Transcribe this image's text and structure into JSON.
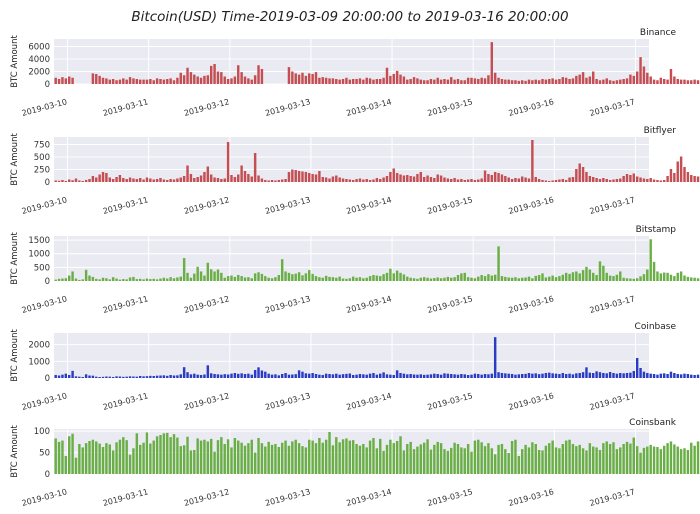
{
  "figure": {
    "title": "Bitcoin(USD)  Time-2019-03-09 20:00:00 to 2019-03-16 20:00:00"
  },
  "x_axis": {
    "ticks": [
      "2019-03-10",
      "2019-03-11",
      "2019-03-12",
      "2019-03-13",
      "2019-03-14",
      "2019-03-15",
      "2019-03-16",
      "2019-03-17"
    ]
  },
  "chart_data": [
    {
      "type": "bar",
      "title": "Binance",
      "ylabel": "BTC Amount",
      "color": "#c44e52",
      "ylim": [
        0,
        7200
      ],
      "yticks": [
        0,
        2000,
        4000,
        6000
      ],
      "grid": true,
      "x_range": [
        "2019-03-09 20:00",
        "2019-03-17 04:00"
      ],
      "x_start": "2019-03-09 20:00",
      "x_step_hours": 1,
      "values": [
        1000,
        800,
        1100,
        900,
        1200,
        1000,
        0,
        0,
        0,
        0,
        0,
        1700,
        1600,
        1300,
        1000,
        900,
        700,
        800,
        600,
        700,
        900,
        700,
        1100,
        900,
        800,
        700,
        700,
        700,
        800,
        600,
        900,
        800,
        700,
        800,
        900,
        600,
        1000,
        1800,
        1400,
        2600,
        1900,
        1500,
        1200,
        1000,
        1300,
        1400,
        2900,
        3200,
        2000,
        1900,
        1200,
        800,
        900,
        1200,
        3000,
        1900,
        1200,
        900,
        700,
        1400,
        3000,
        2400,
        0,
        0,
        0,
        0,
        0,
        0,
        0,
        2700,
        2000,
        1700,
        1500,
        1800,
        1300,
        1700,
        1600,
        1900,
        1000,
        1100,
        1000,
        900,
        900,
        800,
        700,
        800,
        1000,
        700,
        800,
        800,
        900,
        700,
        1000,
        900,
        700,
        800,
        800,
        1000,
        2600,
        1300,
        1600,
        2100,
        1500,
        1200,
        700,
        800,
        1100,
        900,
        700,
        600,
        600,
        800,
        700,
        1000,
        700,
        800,
        700,
        1100,
        700,
        800,
        600,
        600,
        1000,
        1000,
        900,
        800,
        1000,
        900,
        1400,
        6700,
        1800,
        1000,
        800,
        700,
        700,
        600,
        600,
        500,
        600,
        500,
        700,
        600,
        700,
        600,
        800,
        700,
        800,
        900,
        700,
        800,
        1100,
        1000,
        800,
        900,
        1300,
        1500,
        1900,
        1000,
        1200,
        2000,
        800,
        600,
        700,
        900,
        600,
        500,
        600,
        700,
        800,
        900,
        1500,
        1300,
        2000,
        4300,
        2800,
        1800,
        1200,
        700,
        600,
        1000,
        800,
        700,
        2400,
        1200,
        800,
        700,
        700,
        600,
        600,
        700,
        600,
        600,
        500,
        700
      ]
    },
    {
      "type": "bar",
      "title": "Bitflyer",
      "ylabel": "BTC Amount",
      "color": "#c44e52",
      "ylim": [
        0,
        900
      ],
      "yticks": [
        0,
        250,
        500,
        750
      ],
      "grid": true,
      "x_range": [
        "2019-03-09 20:00",
        "2019-03-17 04:00"
      ],
      "x_start": "2019-03-09 20:00",
      "x_step_hours": 1,
      "values": [
        30,
        25,
        40,
        20,
        50,
        35,
        70,
        30,
        20,
        40,
        60,
        120,
        90,
        150,
        200,
        180,
        90,
        60,
        100,
        140,
        80,
        60,
        90,
        70,
        60,
        80,
        50,
        90,
        70,
        50,
        60,
        80,
        50,
        40,
        60,
        50,
        70,
        90,
        120,
        330,
        160,
        80,
        100,
        130,
        200,
        310,
        150,
        90,
        80,
        60,
        70,
        800,
        140,
        100,
        150,
        330,
        220,
        160,
        110,
        580,
        130,
        70,
        40,
        30,
        40,
        30,
        40,
        50,
        60,
        200,
        250,
        240,
        220,
        210,
        200,
        180,
        160,
        150,
        220,
        100,
        90,
        70,
        110,
        130,
        90,
        70,
        60,
        50,
        40,
        60,
        70,
        50,
        60,
        40,
        50,
        80,
        60,
        90,
        120,
        200,
        270,
        180,
        150,
        130,
        140,
        120,
        110,
        160,
        200,
        100,
        130,
        100,
        80,
        150,
        130,
        90,
        70,
        60,
        80,
        50,
        60,
        40,
        50,
        60,
        40,
        50,
        70,
        230,
        160,
        140,
        200,
        180,
        150,
        120,
        90,
        60,
        80,
        70,
        110,
        90,
        70,
        840,
        100,
        60,
        40,
        30,
        20,
        30,
        40,
        50,
        60,
        40,
        90,
        100,
        260,
        370,
        300,
        200,
        120,
        100,
        80,
        60,
        80,
        60,
        40,
        50,
        60,
        70,
        120,
        160,
        140,
        170,
        110,
        90,
        70,
        60,
        80,
        50,
        40,
        30,
        40,
        120,
        260,
        180,
        410,
        510,
        300,
        200,
        140,
        120,
        110,
        200,
        280,
        170,
        100,
        60,
        90,
        140,
        80,
        60,
        40,
        20,
        30,
        20,
        10
      ]
    },
    {
      "type": "bar",
      "title": "Bitstamp",
      "ylabel": "BTC Amount",
      "color": "#6aaf46",
      "ylim": [
        0,
        1650
      ],
      "yticks": [
        0,
        500,
        1000,
        1500
      ],
      "grid": true,
      "x_range": [
        "2019-03-09 20:00",
        "2019-03-17 04:00"
      ],
      "x_start": "2019-03-09 20:00",
      "x_step_hours": 1,
      "values": [
        50,
        80,
        90,
        100,
        200,
        350,
        90,
        40,
        60,
        410,
        200,
        150,
        80,
        60,
        120,
        100,
        60,
        140,
        90,
        50,
        70,
        60,
        130,
        150,
        70,
        80,
        60,
        90,
        70,
        80,
        60,
        90,
        120,
        90,
        140,
        100,
        130,
        160,
        840,
        300,
        120,
        270,
        520,
        350,
        200,
        670,
        430,
        350,
        420,
        300,
        120,
        180,
        200,
        150,
        220,
        180,
        130,
        140,
        100,
        280,
        320,
        260,
        180,
        120,
        100,
        140,
        220,
        800,
        350,
        300,
        250,
        270,
        320,
        210,
        280,
        400,
        260,
        180,
        140,
        120,
        190,
        150,
        140,
        120,
        160,
        90,
        80,
        100,
        160,
        120,
        140,
        100,
        120,
        180,
        220,
        200,
        180,
        250,
        300,
        450,
        280,
        380,
        300,
        240,
        160,
        120,
        100,
        80,
        120,
        140,
        120,
        90,
        110,
        130,
        100,
        120,
        150,
        120,
        140,
        220,
        280,
        300,
        140,
        120,
        100,
        160,
        220,
        180,
        250,
        200,
        230,
        1270,
        180,
        150,
        130,
        120,
        140,
        100,
        120,
        130,
        160,
        100,
        190,
        220,
        280,
        130,
        160,
        200,
        140,
        180,
        230,
        300,
        260,
        320,
        350,
        280,
        400,
        520,
        420,
        300,
        220,
        720,
        560,
        300,
        200,
        180,
        230,
        350,
        120,
        100,
        90,
        80,
        100,
        170,
        250,
        420,
        1530,
        700,
        350,
        280,
        310,
        300,
        230,
        180,
        300,
        350,
        200,
        150,
        130,
        120,
        100,
        90,
        80,
        120,
        100,
        80,
        90,
        60
      ]
    },
    {
      "type": "bar",
      "title": "Coinbase",
      "ylabel": "BTC Amount",
      "color": "#2b3cc4",
      "ylim": [
        0,
        2700
      ],
      "yticks": [
        0,
        1000,
        2000
      ],
      "grid": true,
      "x_range": [
        "2019-03-09 20:00",
        "2019-03-17 04:00"
      ],
      "x_start": "2019-03-09 20:00",
      "x_step_hours": 1,
      "values": [
        180,
        150,
        200,
        260,
        180,
        430,
        100,
        80,
        60,
        220,
        150,
        140,
        80,
        60,
        70,
        90,
        80,
        60,
        100,
        90,
        70,
        80,
        100,
        90,
        80,
        120,
        100,
        110,
        130,
        120,
        140,
        150,
        160,
        130,
        180,
        150,
        160,
        220,
        650,
        350,
        220,
        260,
        200,
        180,
        210,
        760,
        280,
        240,
        220,
        200,
        230,
        210,
        260,
        300,
        250,
        280,
        240,
        260,
        200,
        480,
        640,
        450,
        380,
        260,
        200,
        220,
        160,
        240,
        300,
        200,
        210,
        230,
        460,
        380,
        280,
        260,
        300,
        240,
        200,
        180,
        260,
        240,
        220,
        260,
        200,
        230,
        250,
        270,
        180,
        200,
        240,
        220,
        200,
        260,
        300,
        200,
        260,
        340,
        220,
        200,
        180,
        460,
        300,
        260,
        220,
        240,
        210,
        200,
        220,
        190,
        200,
        220,
        260,
        240,
        200,
        280,
        260,
        240,
        220,
        200,
        240,
        220,
        180,
        200,
        260,
        240,
        200,
        240,
        220,
        260,
        2450,
        350,
        300,
        280,
        260,
        240,
        200,
        220,
        240,
        250,
        300,
        260,
        280,
        230,
        260,
        300,
        320,
        280,
        260,
        240,
        300,
        240,
        260,
        220,
        280,
        300,
        350,
        640,
        320,
        300,
        400,
        350,
        300,
        280,
        360,
        300,
        260,
        300,
        280,
        300,
        320,
        420,
        1200,
        600,
        380,
        300,
        260,
        240,
        200,
        260,
        280,
        240,
        380,
        300,
        240,
        220,
        260,
        240,
        200,
        180,
        200,
        220,
        200,
        180,
        160,
        140
      ]
    },
    {
      "type": "bar",
      "title": "Coinsbank",
      "ylabel": "BTC Amount",
      "color": "#6aaf46",
      "ylim": [
        0,
        105
      ],
      "yticks": [
        0,
        50,
        100
      ],
      "grid": true,
      "x_range": [
        "2019-03-09 20:00",
        "2019-03-17 04:00"
      ],
      "x_start": "2019-03-09 20:00",
      "x_step_hours": 1,
      "values": [
        83,
        75,
        78,
        42,
        88,
        94,
        38,
        70,
        62,
        72,
        77,
        80,
        76,
        71,
        63,
        72,
        69,
        55,
        74,
        80,
        86,
        79,
        45,
        60,
        95,
        68,
        73,
        97,
        71,
        78,
        88,
        91,
        95,
        96,
        86,
        93,
        85,
        65,
        67,
        87,
        55,
        56,
        83,
        78,
        80,
        76,
        82,
        52,
        79,
        86,
        70,
        81,
        62,
        84,
        78,
        73,
        66,
        72,
        80,
        50,
        84,
        72,
        64,
        75,
        68,
        70,
        63,
        73,
        78,
        66,
        76,
        80,
        72,
        65,
        62,
        80,
        78,
        72,
        84,
        73,
        80,
        98,
        67,
        86,
        74,
        81,
        83,
        78,
        79,
        70,
        66,
        70,
        62,
        78,
        84,
        60,
        82,
        54,
        68,
        80,
        72,
        77,
        88,
        55,
        70,
        75,
        58,
        64,
        69,
        73,
        81,
        57,
        68,
        75,
        72,
        58,
        54,
        61,
        73,
        70,
        62,
        60,
        70,
        52,
        78,
        80,
        74,
        65,
        72,
        60,
        46,
        68,
        70,
        58,
        49,
        77,
        80,
        42,
        58,
        68,
        62,
        74,
        70,
        56,
        55,
        66,
        72,
        78,
        62,
        60,
        70,
        78,
        80,
        70,
        65,
        68,
        60,
        55,
        72,
        64,
        62,
        56,
        72,
        76,
        70,
        74,
        58,
        62,
        70,
        75,
        71,
        85,
        65,
        50,
        61,
        64,
        68,
        64,
        63,
        58,
        66,
        72,
        76,
        69,
        64,
        58,
        60,
        56,
        73,
        66,
        76,
        43,
        76
      ]
    }
  ]
}
